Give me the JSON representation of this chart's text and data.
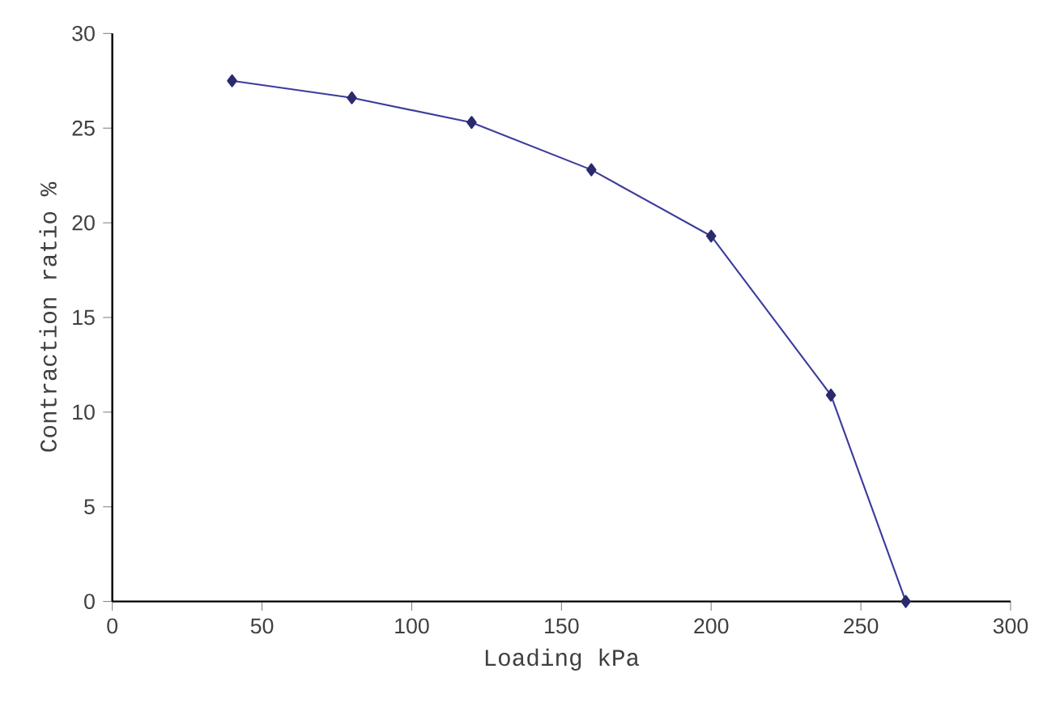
{
  "chart_data": {
    "type": "line",
    "xlabel": "Loading kPa",
    "ylabel": "Contraction ratio %",
    "x": [
      40,
      80,
      120,
      160,
      200,
      240,
      265
    ],
    "values": [
      27.5,
      26.6,
      25.3,
      22.8,
      19.3,
      10.9,
      0
    ],
    "color": "#3c3c9c",
    "marker": "diamond",
    "line_style": "solid",
    "grid": false,
    "xlim": [
      0,
      300
    ],
    "xticks": [
      0,
      50,
      100,
      150,
      200,
      250,
      300
    ],
    "ylim": [
      0,
      30
    ],
    "yticks": [
      0,
      5,
      10,
      15,
      20,
      25,
      30
    ]
  }
}
